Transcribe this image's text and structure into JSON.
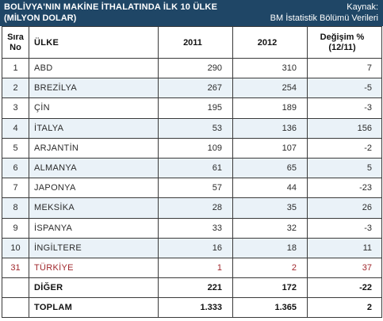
{
  "header": {
    "title": "BOLİVYA'NIN MAKİNE İTHALATINDA İLK 10 ÜLKE",
    "subtitle": "(MİLYON DOLAR)",
    "source_label": "Kaynak:",
    "source_value": "BM İstatistik Bölümü Verileri",
    "background_color": "#1f4666"
  },
  "table": {
    "columns": {
      "rank_line1": "Sıra",
      "rank_line2": "No",
      "country": "ÜLKE",
      "y2011": "2011",
      "y2012": "2012",
      "change_line1": "Değişim %",
      "change_line2": "(12/11)"
    },
    "rows": [
      {
        "rank": "1",
        "country": "ABD",
        "y2011": "290",
        "y2012": "310",
        "change": "7"
      },
      {
        "rank": "2",
        "country": "BREZİLYA",
        "y2011": "267",
        "y2012": "254",
        "change": "-5"
      },
      {
        "rank": "3",
        "country": "ÇİN",
        "y2011": "195",
        "y2012": "189",
        "change": "-3"
      },
      {
        "rank": "4",
        "country": "İTALYA",
        "y2011": "53",
        "y2012": "136",
        "change": "156"
      },
      {
        "rank": "5",
        "country": "ARJANTİN",
        "y2011": "109",
        "y2012": "107",
        "change": "-2"
      },
      {
        "rank": "6",
        "country": "ALMANYA",
        "y2011": "61",
        "y2012": "65",
        "change": "5"
      },
      {
        "rank": "7",
        "country": "JAPONYA",
        "y2011": "57",
        "y2012": "44",
        "change": "-23"
      },
      {
        "rank": "8",
        "country": "MEKSİKA",
        "y2011": "28",
        "y2012": "35",
        "change": "26"
      },
      {
        "rank": "9",
        "country": "İSPANYA",
        "y2011": "33",
        "y2012": "32",
        "change": "-3"
      },
      {
        "rank": "10",
        "country": "İNGİLTERE",
        "y2011": "16",
        "y2012": "18",
        "change": "11"
      },
      {
        "rank": "31",
        "country": "TÜRKİYE",
        "y2011": "1",
        "y2012": "2",
        "change": "37"
      }
    ],
    "other": {
      "label": "DİĞER",
      "y2011": "221",
      "y2012": "172",
      "change": "-22"
    },
    "total": {
      "label": "TOPLAM",
      "y2011": "1.333",
      "y2012": "1.365",
      "change": "2"
    },
    "highlight_color": "#a0272c",
    "alt_row_color": "#eaf2f8"
  }
}
